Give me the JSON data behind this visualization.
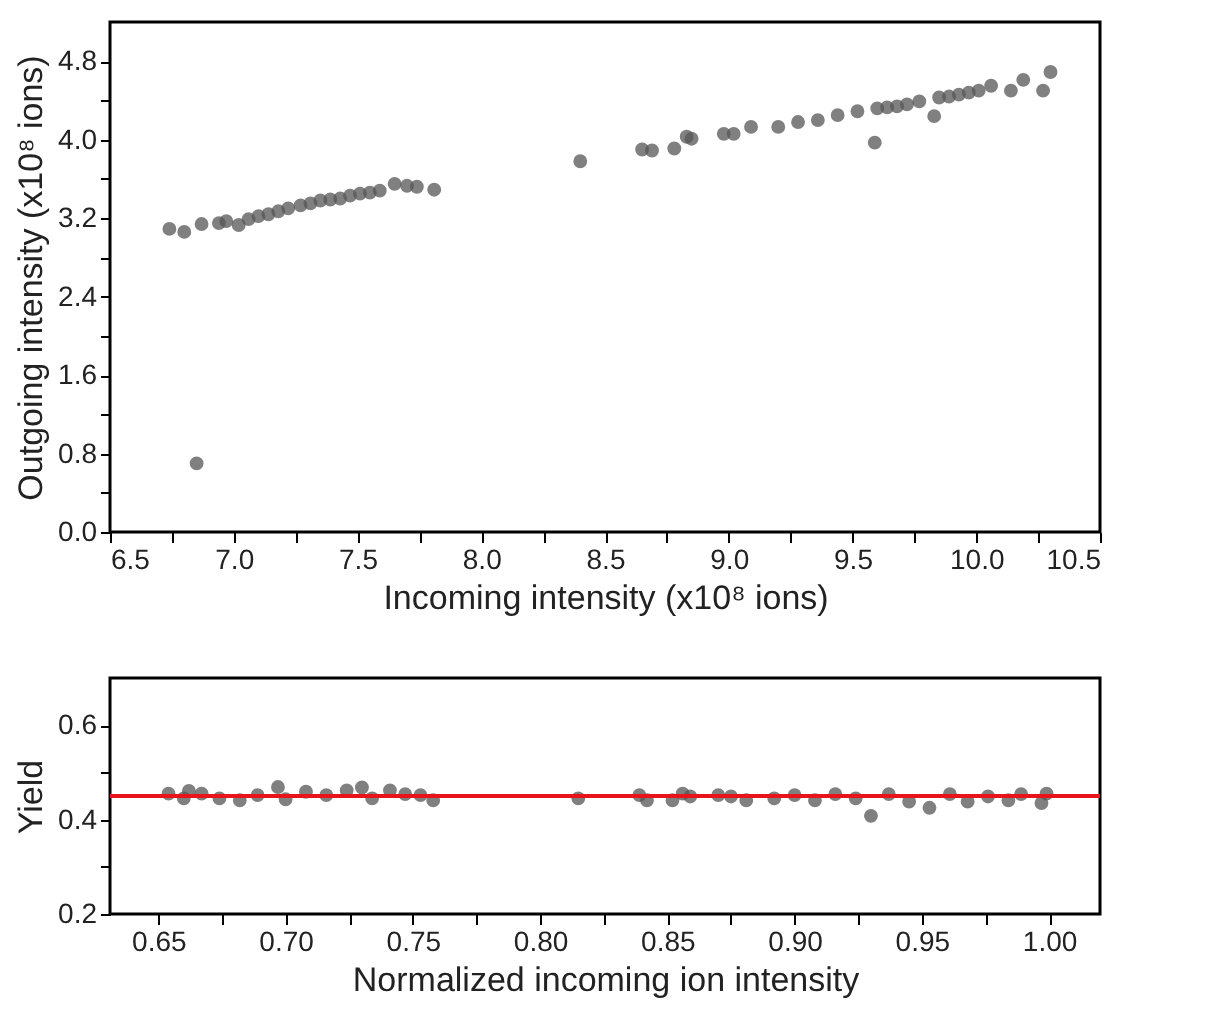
{
  "chart_data": [
    {
      "type": "scatter",
      "xlabel": "Incoming intensity (x10⁸ ions)",
      "ylabel": "Outgoing intensity (x10⁸ ions)",
      "xlim": [
        6.5,
        10.5
      ],
      "ylim": [
        0,
        5.2
      ],
      "marker": "circle",
      "grid": false,
      "legend": false,
      "xticks": [
        {
          "value": 6.5,
          "label": "6.5"
        },
        {
          "value": 6.75,
          "label": null
        },
        {
          "value": 7.0,
          "label": "7.0"
        },
        {
          "value": 7.25,
          "label": null
        },
        {
          "value": 7.5,
          "label": "7.5"
        },
        {
          "value": 7.75,
          "label": null
        },
        {
          "value": 8.0,
          "label": "8.0"
        },
        {
          "value": 8.25,
          "label": null
        },
        {
          "value": 8.5,
          "label": "8.5"
        },
        {
          "value": 8.75,
          "label": null
        },
        {
          "value": 9.0,
          "label": "9.0"
        },
        {
          "value": 9.25,
          "label": null
        },
        {
          "value": 9.5,
          "label": "9.5"
        },
        {
          "value": 9.75,
          "label": null
        },
        {
          "value": 10.0,
          "label": "10.0"
        },
        {
          "value": 10.25,
          "label": null
        },
        {
          "value": 10.5,
          "label": "10.5"
        }
      ],
      "yticks": [
        {
          "value": 0,
          "label": "0.0"
        },
        {
          "value": 0.4,
          "label": null
        },
        {
          "value": 0.8,
          "label": "0.8"
        },
        {
          "value": 1.2,
          "label": null
        },
        {
          "value": 1.6,
          "label": "1.6"
        },
        {
          "value": 2.0,
          "label": null
        },
        {
          "value": 2.4,
          "label": "2.4"
        },
        {
          "value": 2.8,
          "label": null
        },
        {
          "value": 3.2,
          "label": "3.2"
        },
        {
          "value": 3.6,
          "label": null
        },
        {
          "value": 4.0,
          "label": "4.0"
        },
        {
          "value": 4.4,
          "label": null
        },
        {
          "value": 4.8,
          "label": "4.8"
        }
      ],
      "series": [
        {
          "color": "#555555",
          "x": [
            6.74,
            6.8,
            6.85,
            6.87,
            6.94,
            6.97,
            7.02,
            7.06,
            7.1,
            7.14,
            7.18,
            7.22,
            7.27,
            7.31,
            7.35,
            7.39,
            7.43,
            7.47,
            7.51,
            7.55,
            7.59,
            7.65,
            7.7,
            7.74,
            7.81,
            8.4,
            8.65,
            8.69,
            8.78,
            8.83,
            8.85,
            8.98,
            9.02,
            9.09,
            9.2,
            9.28,
            9.36,
            9.44,
            9.52,
            9.59,
            9.6,
            9.64,
            9.68,
            9.72,
            9.77,
            9.83,
            9.85,
            9.89,
            9.93,
            9.97,
            10.01,
            10.06,
            10.14,
            10.19,
            10.27,
            10.3
          ],
          "values": [
            3.09,
            3.06,
            0.7,
            3.14,
            3.15,
            3.17,
            3.13,
            3.19,
            3.22,
            3.24,
            3.27,
            3.3,
            3.33,
            3.35,
            3.38,
            3.39,
            3.4,
            3.43,
            3.45,
            3.46,
            3.48,
            3.55,
            3.53,
            3.52,
            3.49,
            3.78,
            3.9,
            3.89,
            3.91,
            4.03,
            4.01,
            4.06,
            4.06,
            4.13,
            4.13,
            4.18,
            4.2,
            4.25,
            4.29,
            3.97,
            4.32,
            4.33,
            4.34,
            4.36,
            4.39,
            4.24,
            4.43,
            4.44,
            4.46,
            4.48,
            4.5,
            4.55,
            4.5,
            4.61,
            4.5,
            4.69
          ]
        }
      ]
    },
    {
      "type": "scatter",
      "xlabel": "Normalized incoming ion intensity",
      "ylabel": "Yield",
      "xlim": [
        0.631,
        1.02
      ],
      "ylim": [
        0.2,
        0.7
      ],
      "marker": "circle",
      "grid": false,
      "legend": false,
      "xticks": [
        {
          "value": 0.65,
          "label": "0.65"
        },
        {
          "value": 0.675,
          "label": null
        },
        {
          "value": 0.7,
          "label": "0.70"
        },
        {
          "value": 0.725,
          "label": null
        },
        {
          "value": 0.75,
          "label": "0.75"
        },
        {
          "value": 0.775,
          "label": null
        },
        {
          "value": 0.8,
          "label": "0.80"
        },
        {
          "value": 0.825,
          "label": null
        },
        {
          "value": 0.85,
          "label": "0.85"
        },
        {
          "value": 0.875,
          "label": null
        },
        {
          "value": 0.9,
          "label": "0.90"
        },
        {
          "value": 0.925,
          "label": null
        },
        {
          "value": 0.95,
          "label": "0.95"
        },
        {
          "value": 0.975,
          "label": null
        },
        {
          "value": 1.0,
          "label": "1.00"
        }
      ],
      "yticks": [
        0.2,
        {
          "value": 0.3,
          "label": null
        },
        0.4,
        {
          "value": 0.5,
          "label": null
        },
        0.6
      ],
      "ref_lines": [
        {
          "axis": "y",
          "value": 0.45,
          "color": "#e8141b",
          "line_style": "solid"
        }
      ],
      "series": [
        {
          "color": "#555555",
          "x": [
            0.654,
            0.66,
            0.662,
            0.667,
            0.674,
            0.682,
            0.689,
            0.697,
            0.7,
            0.708,
            0.716,
            0.724,
            0.73,
            0.734,
            0.741,
            0.747,
            0.753,
            0.758,
            0.815,
            0.839,
            0.842,
            0.852,
            0.856,
            0.859,
            0.87,
            0.875,
            0.881,
            0.892,
            0.9,
            0.908,
            0.916,
            0.924,
            0.93,
            0.937,
            0.945,
            0.953,
            0.961,
            0.968,
            0.976,
            0.984,
            0.989,
            0.997,
            0.999
          ],
          "values": [
            0.455,
            0.445,
            0.461,
            0.455,
            0.445,
            0.441,
            0.452,
            0.469,
            0.443,
            0.459,
            0.452,
            0.462,
            0.468,
            0.445,
            0.462,
            0.454,
            0.452,
            0.441,
            0.445,
            0.452,
            0.441,
            0.441,
            0.455,
            0.449,
            0.452,
            0.449,
            0.441,
            0.445,
            0.452,
            0.441,
            0.454,
            0.445,
            0.408,
            0.454,
            0.438,
            0.425,
            0.454,
            0.438,
            0.449,
            0.441,
            0.454,
            0.435,
            0.455
          ]
        }
      ]
    }
  ]
}
